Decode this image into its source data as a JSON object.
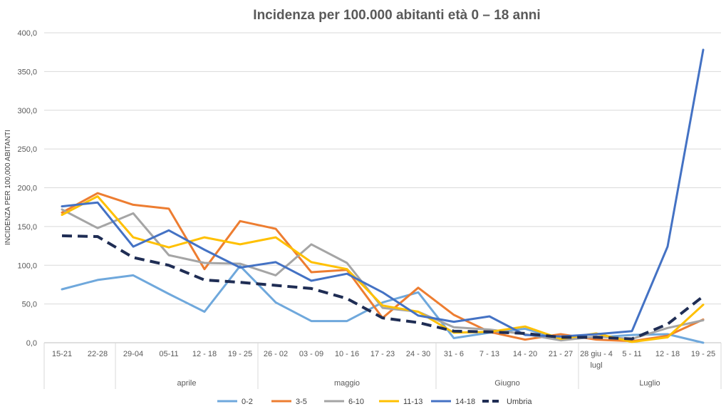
{
  "chart_data": {
    "type": "line",
    "title": "Incidenza per 100.000 abitanti età 0 – 18 anni",
    "ylabel": "INCIDENZA PER 100,000 ABITANTI",
    "ylim": [
      0,
      400
    ],
    "y_ticks": [
      "0,0",
      "50,0",
      "100,0",
      "150,0",
      "200,0",
      "250,0",
      "300,0",
      "350,0",
      "400,0"
    ],
    "grid": true,
    "legend_position": "bottom",
    "categories": [
      "15-21",
      "22-28",
      "29-04",
      "05-11",
      "12 - 18",
      "19 - 25",
      "26 - 02",
      "03 - 09",
      "10 - 16",
      "17 - 23",
      "24 - 30",
      "31 - 6",
      "7 - 13",
      "14 - 20",
      "21 - 27",
      "28 giu - 4 lugl",
      "5 - 11",
      "12 - 18",
      "19 - 25"
    ],
    "category_labels": [
      [
        "15-21"
      ],
      [
        "22-28"
      ],
      [
        "29-04"
      ],
      [
        "05-11"
      ],
      [
        "12 - 18"
      ],
      [
        "19 - 25"
      ],
      [
        "26 - 02"
      ],
      [
        "03 - 09"
      ],
      [
        "10 - 16"
      ],
      [
        "17 - 23"
      ],
      [
        "24 - 30"
      ],
      [
        "31 - 6"
      ],
      [
        "7 - 13"
      ],
      [
        "14 - 20"
      ],
      [
        "21 - 27"
      ],
      [
        "28 giu - 4",
        "lugl"
      ],
      [
        "5 - 11"
      ],
      [
        "12 - 18"
      ],
      [
        "19 - 25"
      ]
    ],
    "groups": [
      {
        "label": "",
        "start": 0,
        "end": 1
      },
      {
        "label": "aprile",
        "start": 2,
        "end": 5
      },
      {
        "label": "maggio",
        "start": 6,
        "end": 10
      },
      {
        "label": "Giugno",
        "start": 11,
        "end": 14
      },
      {
        "label": "Luglio",
        "start": 15,
        "end": 18
      }
    ],
    "series": [
      {
        "name": "0-2",
        "color": "#6fa8dc",
        "dashed": false,
        "values": [
          69,
          81,
          87,
          63,
          40,
          99,
          52,
          28,
          28,
          52,
          65,
          6,
          13,
          18,
          5,
          7,
          10,
          11,
          0
        ]
      },
      {
        "name": "3-5",
        "color": "#ed7d31",
        "dashed": false,
        "values": [
          168,
          193,
          178,
          173,
          95,
          157,
          147,
          91,
          94,
          32,
          71,
          36,
          14,
          4,
          11,
          4,
          2,
          9,
          30
        ]
      },
      {
        "name": "6-10",
        "color": "#a5a5a5",
        "dashed": false,
        "values": [
          172,
          148,
          167,
          113,
          103,
          102,
          87,
          127,
          103,
          45,
          40,
          20,
          17,
          11,
          3,
          8,
          5,
          19,
          29
        ]
      },
      {
        "name": "11-13",
        "color": "#ffc000",
        "dashed": false,
        "values": [
          165,
          189,
          136,
          123,
          136,
          127,
          136,
          104,
          95,
          48,
          40,
          13,
          14,
          21,
          5,
          12,
          1,
          7,
          49
        ]
      },
      {
        "name": "14-18",
        "color": "#4472c4",
        "dashed": false,
        "values": [
          176,
          181,
          124,
          145,
          120,
          97,
          104,
          80,
          89,
          65,
          35,
          27,
          34,
          10,
          8,
          11,
          15,
          124,
          378
        ]
      },
      {
        "name": "Umbria",
        "color": "#1f2d54",
        "dashed": true,
        "values": [
          138,
          137,
          110,
          100,
          81,
          78,
          74,
          70,
          57,
          32,
          26,
          15,
          14,
          12,
          7,
          7,
          5,
          24,
          60
        ]
      }
    ]
  }
}
